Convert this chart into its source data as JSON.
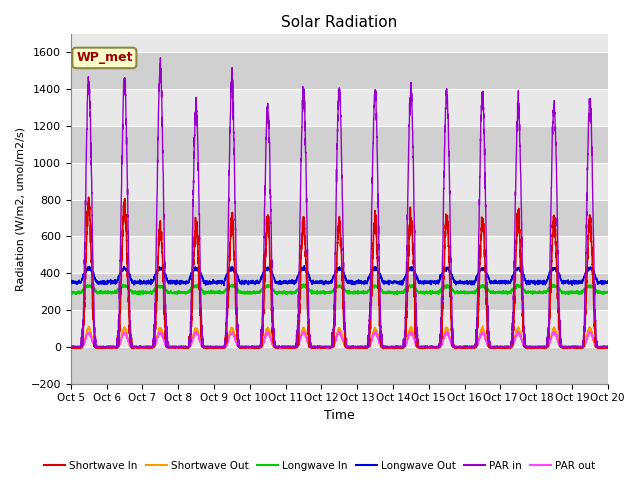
{
  "title": "Solar Radiation",
  "ylabel": "Radiation (W/m2, umol/m2/s)",
  "xlabel": "Time",
  "xlim": [
    0,
    15
  ],
  "ylim": [
    -200,
    1700
  ],
  "yticks": [
    -200,
    0,
    200,
    400,
    600,
    800,
    1000,
    1200,
    1400,
    1600
  ],
  "xtick_labels": [
    "Oct 5",
    "Oct 6",
    "Oct 7",
    "Oct 8",
    "Oct 9",
    "Oct 10",
    "Oct 11",
    "Oct 12",
    "Oct 13",
    "Oct 14",
    "Oct 15",
    "Oct 16",
    "Oct 17",
    "Oct 18",
    "Oct 19",
    "Oct 20"
  ],
  "bg_color_light": "#e8e8e8",
  "bg_color_dark": "#d0d0d0",
  "grid_color": "#ffffff",
  "annotation_text": "WP_met",
  "annotation_bg": "#ffffcc",
  "annotation_border": "#888844",
  "series_colors": {
    "shortwave_in": "#dd0000",
    "shortwave_out": "#ff9900",
    "longwave_in": "#00cc00",
    "longwave_out": "#0000dd",
    "par_in": "#9900cc",
    "par_out": "#ff44ff"
  },
  "legend": [
    "Shortwave In",
    "Shortwave Out",
    "Longwave In",
    "Longwave Out",
    "PAR in",
    "PAR out"
  ]
}
